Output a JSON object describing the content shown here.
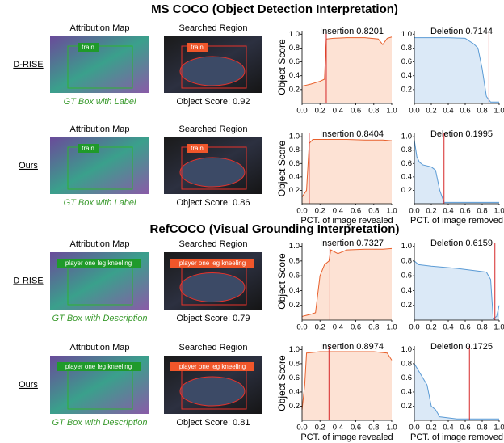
{
  "figure": {
    "sections": [
      {
        "title": "MS COCO (Object Detection Interpretation)",
        "rows": [
          {
            "method": "D-RISE",
            "map_title": "Attribution Map",
            "region_title": "Searched Region",
            "box_label": "train",
            "caption": "GT Box with Label",
            "score": "Object Score: 0.92"
          },
          {
            "method": "Ours",
            "map_title": "Attribution Map",
            "region_title": "Searched Region",
            "box_label": "train",
            "caption": "GT Box with Label",
            "score": "Object Score: 0.86"
          }
        ]
      },
      {
        "title": "RefCOCO (Visual Grounding Interpretation)",
        "rows": [
          {
            "method": "D-RISE",
            "map_title": "Attribution Map",
            "region_title": "Searched Region",
            "box_label": "player one leg kneeling",
            "caption": "GT Box with Description",
            "score": "Object Score: 0.79"
          },
          {
            "method": "Ours",
            "map_title": "Attribution Map",
            "region_title": "Searched Region",
            "box_label": "player one leg kneeling",
            "caption": "GT Box with Description",
            "score": "Object Score: 0.81"
          }
        ]
      }
    ]
  },
  "chart_data": [
    {
      "type": "line",
      "title": "Insertion 0.8201",
      "ylabel": "Object Score",
      "x": [
        0,
        0.1,
        0.2,
        0.25,
        0.27,
        0.35,
        0.5,
        0.7,
        0.85,
        0.9,
        0.95,
        1.0
      ],
      "values": [
        0.25,
        0.28,
        0.32,
        0.35,
        0.93,
        0.94,
        0.95,
        0.95,
        0.93,
        0.85,
        0.94,
        0.96
      ],
      "color": "#e8602c",
      "fill_color": "#fde2d4",
      "marker_x": 0.27,
      "marker_color": "#d62728",
      "xlim": [
        0,
        1
      ],
      "ylim": [
        0,
        1.05
      ],
      "xticks": [
        {
          "value": 0,
          "label": "0.0"
        },
        0.2,
        0.4,
        0.6,
        0.8,
        {
          "value": 1,
          "label": "1.0"
        }
      ],
      "yticks": [
        0.2,
        0.4,
        0.6,
        0.8,
        {
          "value": 1,
          "label": "1.0"
        }
      ]
    },
    {
      "type": "line",
      "title": "Deletion 0.7144",
      "x": [
        0,
        0.2,
        0.4,
        0.6,
        0.65,
        0.7,
        0.75,
        0.8,
        0.85,
        0.9,
        1.0
      ],
      "values": [
        0.95,
        0.95,
        0.95,
        0.94,
        0.9,
        0.86,
        0.8,
        0.5,
        0.1,
        0.02,
        0.02
      ],
      "color": "#5b9bd5",
      "fill_color": "#dbe9f7",
      "marker_x": 0.88,
      "marker_color": "#d62728",
      "xlim": [
        0,
        1
      ],
      "ylim": [
        0,
        1.05
      ],
      "xticks": [
        {
          "value": 0,
          "label": "0.0"
        },
        0.2,
        0.4,
        0.6,
        0.8,
        {
          "value": 1,
          "label": "1.0"
        }
      ],
      "yticks": [
        0.2,
        0.4,
        0.6,
        0.8,
        {
          "value": 1,
          "label": "1.0"
        }
      ]
    },
    {
      "type": "line",
      "title": "Insertion 0.8404",
      "ylabel": "Object Score",
      "x": [
        0,
        0.05,
        0.08,
        0.12,
        0.3,
        0.5,
        0.7,
        0.9,
        1.0
      ],
      "values": [
        0.1,
        0.2,
        0.9,
        0.96,
        0.96,
        0.96,
        0.95,
        0.95,
        0.94
      ],
      "color": "#e8602c",
      "fill_color": "#fde2d4",
      "marker_x": 0.08,
      "marker_color": "#d62728",
      "xlim": [
        0,
        1
      ],
      "ylim": [
        0,
        1.05
      ],
      "xticks": [
        {
          "value": 0,
          "label": "0.0"
        },
        0.2,
        0.4,
        0.6,
        0.8,
        {
          "value": 1,
          "label": "1.0"
        }
      ],
      "yticks": [
        0.2,
        0.4,
        0.6,
        0.8,
        {
          "value": 1,
          "label": "1.0"
        }
      ],
      "xlabel": "PCT. of image revealed"
    },
    {
      "type": "line",
      "title": "Deletion 0.1995",
      "x": [
        0,
        0.03,
        0.06,
        0.1,
        0.2,
        0.25,
        0.3,
        0.35,
        0.5,
        0.7,
        1.0
      ],
      "values": [
        0.95,
        0.7,
        0.62,
        0.58,
        0.55,
        0.5,
        0.2,
        0.02,
        0.02,
        0.02,
        0.02
      ],
      "color": "#5b9bd5",
      "fill_color": "#dbe9f7",
      "marker_x": 0.35,
      "marker_color": "#d62728",
      "xlim": [
        0,
        1
      ],
      "ylim": [
        0,
        1.05
      ],
      "xticks": [
        {
          "value": 0,
          "label": "0.0"
        },
        0.2,
        0.4,
        0.6,
        0.8,
        {
          "value": 1,
          "label": "1.0"
        }
      ],
      "yticks": [
        0.2,
        0.4,
        0.6,
        0.8,
        {
          "value": 1,
          "label": "1.0"
        }
      ],
      "xlabel": "PCT. of image removed"
    },
    {
      "type": "line",
      "title": "Insertion 0.7327",
      "ylabel": "Object Score",
      "x": [
        0,
        0.1,
        0.15,
        0.2,
        0.25,
        0.3,
        0.32,
        0.4,
        0.5,
        0.7,
        0.9,
        1.0
      ],
      "values": [
        0.05,
        0.08,
        0.1,
        0.6,
        0.75,
        0.8,
        0.95,
        0.9,
        0.95,
        0.96,
        0.96,
        0.97
      ],
      "color": "#e8602c",
      "fill_color": "#fde2d4",
      "marker_x": 0.31,
      "marker_color": "#d62728",
      "xlim": [
        0,
        1
      ],
      "ylim": [
        0,
        1.05
      ],
      "xticks": [
        {
          "value": 0,
          "label": "0.0"
        },
        0.2,
        0.4,
        0.6,
        0.8,
        {
          "value": 1,
          "label": "1.0"
        }
      ],
      "yticks": [
        0.2,
        0.4,
        0.6,
        0.8,
        {
          "value": 1,
          "label": "1.0"
        }
      ]
    },
    {
      "type": "line",
      "title": "Deletion 0.6159",
      "x": [
        0,
        0.05,
        0.2,
        0.5,
        0.85,
        0.9,
        0.93,
        0.97,
        1.0
      ],
      "values": [
        0.8,
        0.75,
        0.73,
        0.7,
        0.65,
        0.55,
        0.02,
        0.05,
        0.2
      ],
      "color": "#5b9bd5",
      "fill_color": "#dbe9f7",
      "marker_x": 0.95,
      "marker_color": "#d62728",
      "xlim": [
        0,
        1
      ],
      "ylim": [
        0,
        1.05
      ],
      "xticks": [
        {
          "value": 0,
          "label": "0.0"
        },
        0.2,
        0.4,
        0.6,
        0.8,
        {
          "value": 1,
          "label": "1.0"
        }
      ],
      "yticks": [
        0.2,
        0.4,
        0.6,
        0.8,
        {
          "value": 1,
          "label": "1.0"
        }
      ]
    },
    {
      "type": "line",
      "title": "Insertion 0.8974",
      "ylabel": "Object Score",
      "x": [
        0,
        0.03,
        0.05,
        0.2,
        0.5,
        0.8,
        0.95,
        1.0
      ],
      "values": [
        0.15,
        0.5,
        0.95,
        0.97,
        0.97,
        0.97,
        0.95,
        0.85
      ],
      "color": "#e8602c",
      "fill_color": "#fde2d4",
      "marker_x": 0.3,
      "marker_color": "#d62728",
      "xlim": [
        0,
        1
      ],
      "ylim": [
        0,
        1.05
      ],
      "xticks": [
        {
          "value": 0,
          "label": "0.0"
        },
        0.2,
        0.4,
        0.6,
        0.8,
        {
          "value": 1,
          "label": "1.0"
        }
      ],
      "yticks": [
        0.2,
        0.4,
        0.6,
        0.8,
        {
          "value": 1,
          "label": "1.0"
        }
      ],
      "xlabel": "PCT. of image revealed"
    },
    {
      "type": "line",
      "title": "Deletion 0.1725",
      "x": [
        0,
        0.05,
        0.1,
        0.15,
        0.2,
        0.25,
        0.3,
        0.5,
        0.7,
        1.0
      ],
      "values": [
        0.8,
        0.7,
        0.6,
        0.5,
        0.2,
        0.15,
        0.05,
        0.02,
        0.02,
        0.02
      ],
      "color": "#5b9bd5",
      "fill_color": "#dbe9f7",
      "marker_x": 0.65,
      "marker_color": "#d62728",
      "xlim": [
        0,
        1
      ],
      "ylim": [
        0,
        1.05
      ],
      "xticks": [
        {
          "value": 0,
          "label": "0.0"
        },
        0.2,
        0.4,
        0.6,
        0.8,
        {
          "value": 1,
          "label": "1.0"
        }
      ],
      "yticks": [
        0.2,
        0.4,
        0.6,
        0.8,
        {
          "value": 1,
          "label": "1.0"
        }
      ],
      "xlabel": "PCT. of image removed"
    }
  ]
}
